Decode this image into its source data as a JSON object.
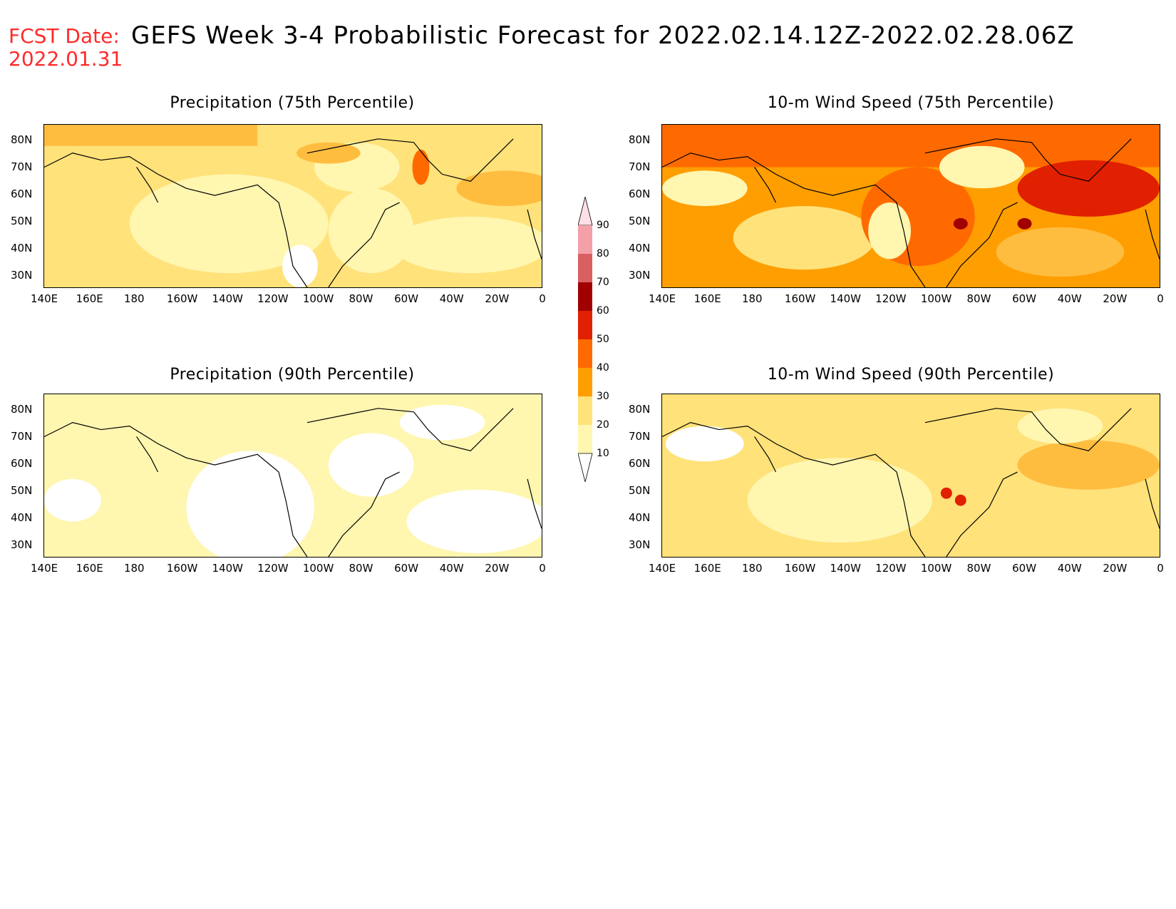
{
  "header": {
    "fcst_label": "FCST Date:",
    "fcst_date": "2022.01.31",
    "title": "GEFS Week 3-4 Probabilistic Forecast for 2022.02.14.12Z-2022.02.28.06Z"
  },
  "panels": [
    {
      "id": "precip75",
      "title": "Precipitation (75th Percentile)",
      "dominant": "low"
    },
    {
      "id": "wind75",
      "title": "10-m Wind Speed (75th Percentile)",
      "dominant": "high"
    },
    {
      "id": "precip90",
      "title": "Precipitation (90th Percentile)",
      "dominant": "verylow"
    },
    {
      "id": "wind90",
      "title": "10-m Wind Speed (90th Percentile)",
      "dominant": "lowmid"
    }
  ],
  "axes": {
    "lat_labels": [
      "80N",
      "70N",
      "60N",
      "50N",
      "40N",
      "30N"
    ],
    "lon_labels": [
      "140E",
      "160E",
      "180",
      "160W",
      "140W",
      "120W",
      "100W",
      "80W",
      "60W",
      "40W",
      "20W",
      "0"
    ]
  },
  "colorbar": {
    "levels": [
      "10",
      "20",
      "30",
      "40",
      "50",
      "60",
      "70",
      "80",
      "90"
    ],
    "colors": [
      "#ffffff",
      "#fff6b0",
      "#ffe27a",
      "#ff9e00",
      "#ff6a00",
      "#e02000",
      "#a00000",
      "#d86060",
      "#f4a0a8",
      "#fde0e6"
    ]
  }
}
